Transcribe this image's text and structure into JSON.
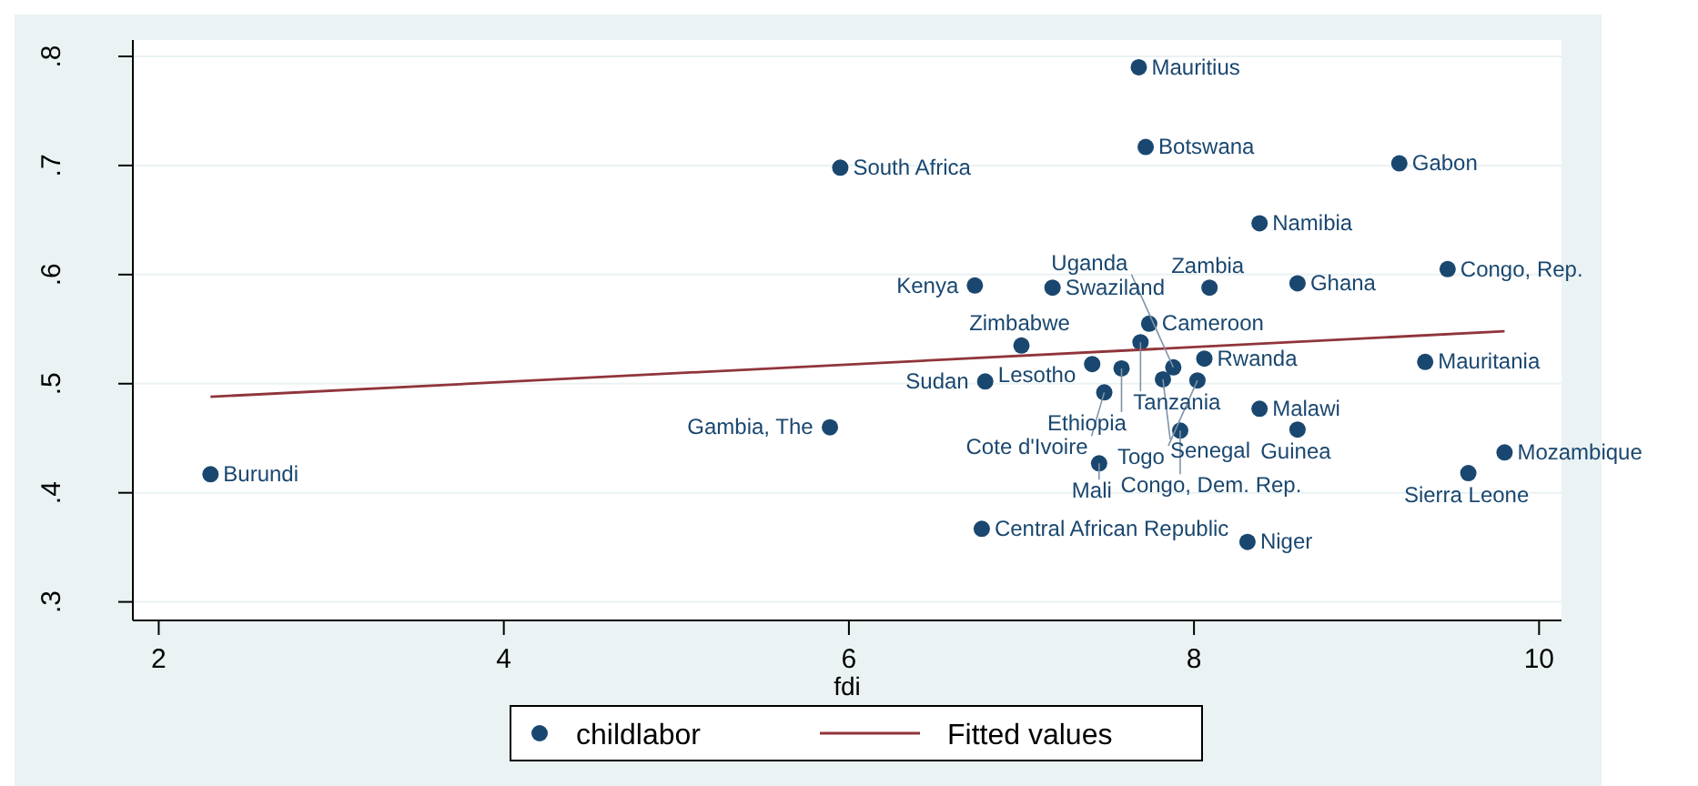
{
  "chart_data": {
    "type": "scatter",
    "xlabel": "fdi",
    "xlim": [
      1.85,
      10.13
    ],
    "ylim": [
      0.283,
      0.815
    ],
    "xticks": [
      2,
      4,
      6,
      8,
      10
    ],
    "yticks": [
      {
        "value": 0.3,
        "label": ".3"
      },
      {
        "value": 0.4,
        "label": ".4"
      },
      {
        "value": 0.5,
        "label": ".5"
      },
      {
        "value": 0.6,
        "label": ".6"
      },
      {
        "value": 0.7,
        "label": ".7"
      },
      {
        "value": 0.8,
        "label": ".8"
      }
    ],
    "grid": "y",
    "legend": "bottom",
    "marker": "circle",
    "series": [
      {
        "name": "childlabor",
        "type": "scatter",
        "color": "#1a476f",
        "x": [
          7.68,
          7.72,
          5.95,
          9.19,
          8.38,
          9.47,
          6.73,
          7.18,
          8.09,
          8.6,
          7.74,
          7.0,
          7.69,
          7.41,
          8.06,
          9.34,
          6.79,
          7.58,
          7.82,
          7.88,
          8.02,
          7.48,
          8.38,
          5.89,
          7.92,
          8.6,
          9.8,
          2.3,
          9.59,
          7.45,
          6.77,
          8.31
        ],
        "values": [
          0.79,
          0.717,
          0.698,
          0.702,
          0.647,
          0.605,
          0.59,
          0.588,
          0.588,
          0.592,
          0.555,
          0.535,
          0.538,
          0.518,
          0.523,
          0.52,
          0.502,
          0.514,
          0.504,
          0.515,
          0.503,
          0.492,
          0.477,
          0.46,
          0.457,
          0.458,
          0.437,
          0.417,
          0.418,
          0.427,
          0.367,
          0.355
        ]
      },
      {
        "name": "Fitted values",
        "type": "line",
        "color": "#90353b",
        "marker": "none",
        "x": [
          2.3,
          9.8
        ],
        "values": [
          0.488,
          0.548
        ]
      }
    ],
    "annotations": [
      {
        "text": "Mauritius",
        "x": 7.68,
        "y": 0.79
      },
      {
        "text": "Botswana",
        "x": 7.72,
        "y": 0.717
      },
      {
        "text": "South Africa",
        "x": 5.95,
        "y": 0.698
      },
      {
        "text": "Gabon",
        "x": 9.19,
        "y": 0.702
      },
      {
        "text": "Namibia",
        "x": 8.38,
        "y": 0.647
      },
      {
        "text": "Congo, Rep.",
        "x": 9.47,
        "y": 0.605
      },
      {
        "text": "Kenya",
        "x": 6.73,
        "y": 0.59
      },
      {
        "text": "Swaziland",
        "x": 7.18,
        "y": 0.588
      },
      {
        "text": "Zambia",
        "x": 8.09,
        "y": 0.588
      },
      {
        "text": "Ghana",
        "x": 8.6,
        "y": 0.592
      },
      {
        "text": "Cameroon",
        "x": 7.74,
        "y": 0.555
      },
      {
        "text": "Zimbabwe",
        "x": 7.0,
        "y": 0.535
      },
      {
        "text": "Tanzania",
        "x": 7.69,
        "y": 0.538
      },
      {
        "text": "Lesotho",
        "x": 7.41,
        "y": 0.518
      },
      {
        "text": "Rwanda",
        "x": 8.06,
        "y": 0.523
      },
      {
        "text": "Mauritania",
        "x": 9.34,
        "y": 0.52
      },
      {
        "text": "Sudan",
        "x": 6.79,
        "y": 0.502
      },
      {
        "text": "Ethiopia",
        "x": 7.58,
        "y": 0.514
      },
      {
        "text": "Senegal",
        "x": 7.82,
        "y": 0.504
      },
      {
        "text": "Uganda",
        "x": 7.88,
        "y": 0.515
      },
      {
        "text": "Togo",
        "x": 8.02,
        "y": 0.503
      },
      {
        "text": "Cote d'Ivoire",
        "x": 7.48,
        "y": 0.492
      },
      {
        "text": "Malawi",
        "x": 8.38,
        "y": 0.477
      },
      {
        "text": "Gambia, The",
        "x": 5.89,
        "y": 0.46
      },
      {
        "text": "Congo, Dem. Rep.",
        "x": 7.92,
        "y": 0.457
      },
      {
        "text": "Guinea",
        "x": 8.6,
        "y": 0.458
      },
      {
        "text": "Mozambique",
        "x": 9.8,
        "y": 0.437
      },
      {
        "text": "Burundi",
        "x": 2.3,
        "y": 0.417
      },
      {
        "text": "Sierra Leone",
        "x": 9.59,
        "y": 0.418
      },
      {
        "text": "Mali",
        "x": 7.45,
        "y": 0.427
      },
      {
        "text": "Central African Republic",
        "x": 6.77,
        "y": 0.367
      },
      {
        "text": "Niger",
        "x": 8.31,
        "y": 0.355
      }
    ]
  }
}
